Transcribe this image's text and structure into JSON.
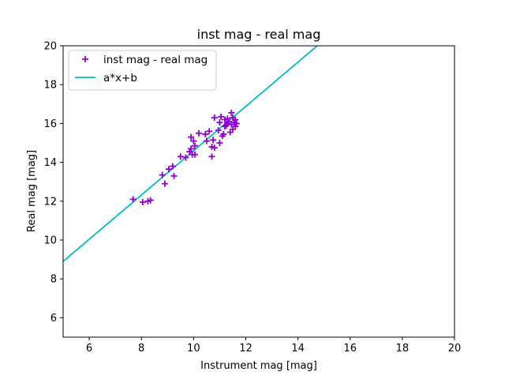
{
  "chart_data": {
    "type": "scatter",
    "title": "inst mag - real mag",
    "xlabel": "Instrument mag [mag]",
    "ylabel": "Real mag [mag]",
    "xlim": [
      5,
      20
    ],
    "ylim": [
      5,
      20
    ],
    "xticks": [
      6,
      8,
      10,
      12,
      14,
      16,
      18,
      20
    ],
    "yticks": [
      6,
      8,
      10,
      12,
      14,
      16,
      18,
      20
    ],
    "grid": false,
    "legend_position": "top-left",
    "colors": {
      "scatter": "#9400d3",
      "fit": "#00bfbf",
      "axes": "#000000"
    },
    "series": [
      {
        "name": "inst mag - real mag",
        "kind": "scatter",
        "marker": "+",
        "points": [
          [
            7.68,
            12.1
          ],
          [
            8.05,
            11.95
          ],
          [
            8.25,
            12.0
          ],
          [
            8.35,
            12.05
          ],
          [
            8.8,
            13.35
          ],
          [
            8.9,
            12.9
          ],
          [
            9.05,
            13.65
          ],
          [
            9.2,
            13.8
          ],
          [
            9.25,
            13.3
          ],
          [
            9.5,
            14.3
          ],
          [
            9.7,
            14.25
          ],
          [
            9.85,
            14.55
          ],
          [
            9.9,
            14.7
          ],
          [
            9.9,
            15.3
          ],
          [
            9.95,
            14.4
          ],
          [
            10.0,
            15.1
          ],
          [
            10.05,
            14.4
          ],
          [
            10.05,
            14.85
          ],
          [
            10.2,
            15.5
          ],
          [
            10.45,
            15.45
          ],
          [
            10.5,
            15.1
          ],
          [
            10.6,
            15.6
          ],
          [
            10.7,
            14.3
          ],
          [
            10.7,
            14.8
          ],
          [
            10.75,
            15.15
          ],
          [
            10.8,
            14.75
          ],
          [
            10.8,
            16.3
          ],
          [
            10.95,
            15.65
          ],
          [
            11.0,
            15.0
          ],
          [
            11.0,
            16.05
          ],
          [
            11.05,
            16.35
          ],
          [
            11.1,
            15.35
          ],
          [
            11.15,
            15.45
          ],
          [
            11.2,
            15.85
          ],
          [
            11.2,
            16.2
          ],
          [
            11.25,
            15.9
          ],
          [
            11.3,
            16.0
          ],
          [
            11.3,
            16.25
          ],
          [
            11.35,
            16.1
          ],
          [
            11.4,
            15.55
          ],
          [
            11.45,
            16.55
          ],
          [
            11.45,
            15.95
          ],
          [
            11.5,
            15.7
          ],
          [
            11.5,
            16.3
          ],
          [
            11.55,
            16.05
          ],
          [
            11.6,
            15.85
          ],
          [
            11.6,
            16.2
          ],
          [
            11.65,
            16.0
          ]
        ]
      },
      {
        "name": "a*x+b",
        "kind": "line",
        "a": 1.14,
        "b": 3.2
      }
    ]
  }
}
